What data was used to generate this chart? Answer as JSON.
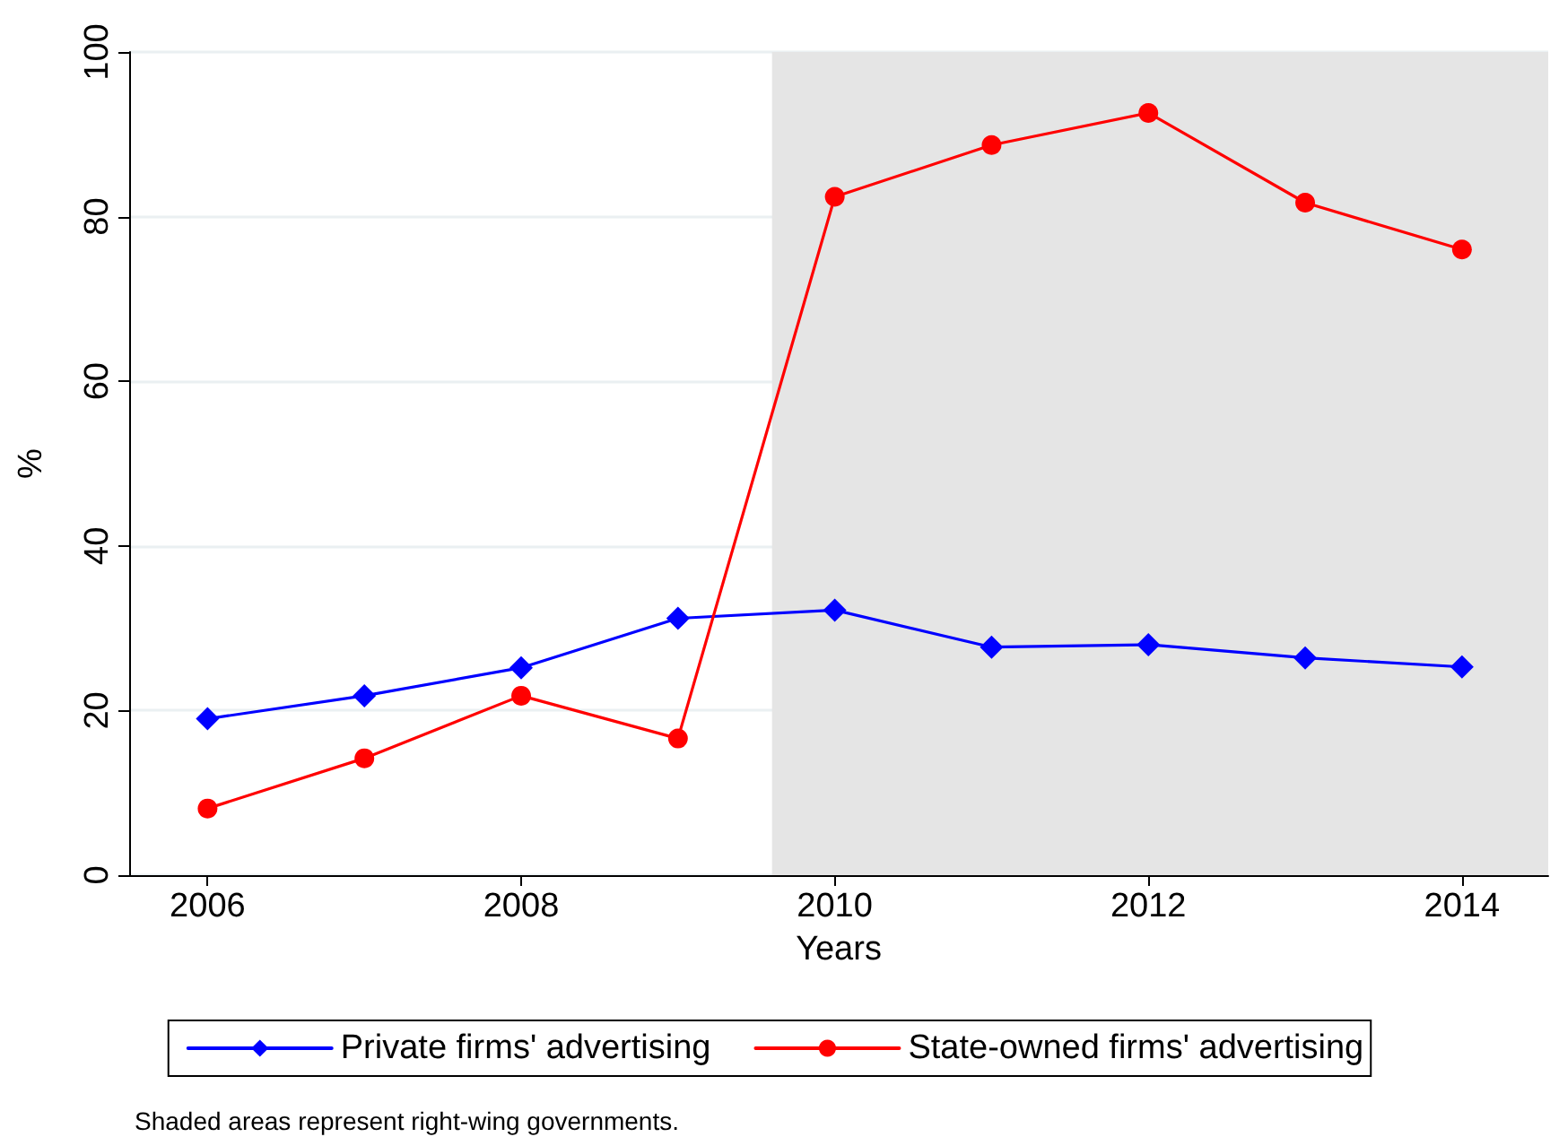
{
  "chart_data": {
    "type": "line",
    "xlabel": "Years",
    "ylabel": "%",
    "x": [
      2006,
      2007,
      2008,
      2009,
      2010,
      2011,
      2012,
      2013,
      2014
    ],
    "series": [
      {
        "name": "Private firms' advertising",
        "color": "#0000ff",
        "marker": "diamond",
        "values": [
          19,
          21.8,
          25.2,
          31.2,
          32.2,
          27.7,
          28,
          26.4,
          25.3
        ]
      },
      {
        "name": "State-owned firms' advertising",
        "color": "#ff0000",
        "marker": "circle",
        "values": [
          8.1,
          14.2,
          21.8,
          16.6,
          82.4,
          88.7,
          92.6,
          81.7,
          76
        ]
      }
    ],
    "xlim": [
      2005.5,
      2014.55
    ],
    "xticks": [
      2006,
      2008,
      2010,
      2012,
      2014
    ],
    "ylim": [
      0,
      100
    ],
    "yticks": [
      0,
      20,
      40,
      60,
      80,
      100
    ],
    "bands": [
      {
        "axis": "x",
        "from": 2009.6,
        "to": 2014.55,
        "color": "#e5e5e5"
      }
    ],
    "grid": "y",
    "legend": "bottom",
    "line_style": "solid",
    "annotations": [
      "Shaded areas represent right-wing governments."
    ]
  }
}
